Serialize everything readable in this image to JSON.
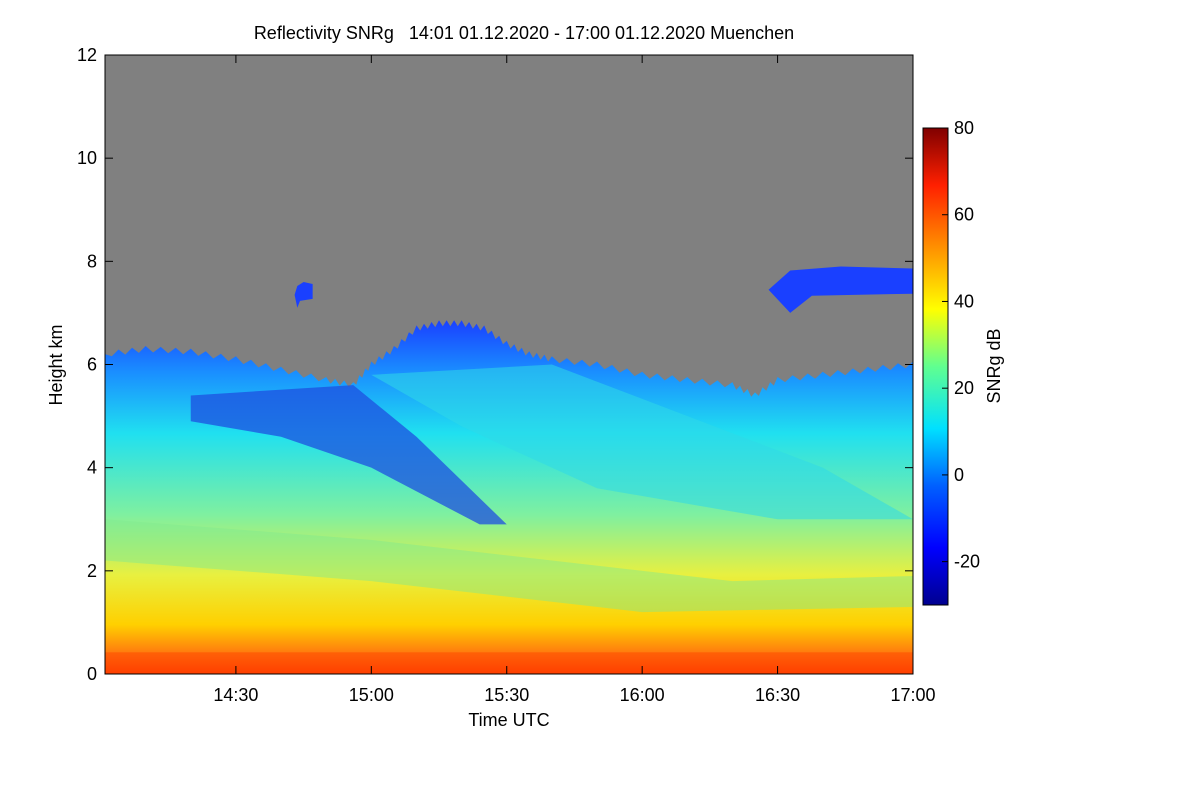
{
  "chart_data": {
    "type": "heatmap",
    "title": "Reflectivity SNRg   14:01 01.12.2020 - 17:00 01.12.2020 Muenchen",
    "xlabel": "Time UTC",
    "ylabel": "Height km",
    "x_range": [
      "14:01",
      "17:00"
    ],
    "x_ticks": [
      "14:30",
      "15:00",
      "15:30",
      "16:00",
      "16:30",
      "17:00"
    ],
    "ylim": [
      0,
      12
    ],
    "y_ticks": [
      0,
      2,
      4,
      6,
      8,
      10,
      12
    ],
    "colorbar": {
      "label": "SNRg dB",
      "range": [
        -30,
        80
      ],
      "ticks": [
        -20,
        0,
        20,
        40,
        60,
        80
      ]
    },
    "background_color": "#808080",
    "colormap": [
      "#00008f",
      "#0000ff",
      "#0080ff",
      "#00ffff",
      "#80ff80",
      "#ffff00",
      "#ff8000",
      "#ff0000",
      "#800000"
    ],
    "cloud_top_profile": {
      "x": [
        "14:01",
        "14:10",
        "14:20",
        "14:30",
        "14:40",
        "14:50",
        "14:56",
        "15:00",
        "15:05",
        "15:10",
        "15:15",
        "15:20",
        "15:25",
        "15:30",
        "15:35",
        "15:40",
        "15:50",
        "16:00",
        "16:10",
        "16:20",
        "16:25",
        "16:30",
        "16:40",
        "16:50",
        "17:00"
      ],
      "top_km": [
        6.2,
        6.3,
        6.25,
        6.1,
        5.9,
        5.7,
        5.6,
        6.0,
        6.3,
        6.7,
        6.8,
        6.8,
        6.7,
        6.4,
        6.2,
        6.1,
        6.0,
        5.8,
        5.7,
        5.6,
        5.4,
        5.7,
        5.8,
        5.9,
        6.0
      ]
    },
    "upper_cloud_patches": [
      {
        "x": [
          "14:43",
          "14:47"
        ],
        "top_km": 7.6,
        "base_km": 7.1
      },
      {
        "x": [
          "16:28",
          "17:00"
        ],
        "top_km": 7.9,
        "base_km": 7.0
      }
    ],
    "low_level_max_zone_km": [
      0,
      1.2
    ]
  }
}
